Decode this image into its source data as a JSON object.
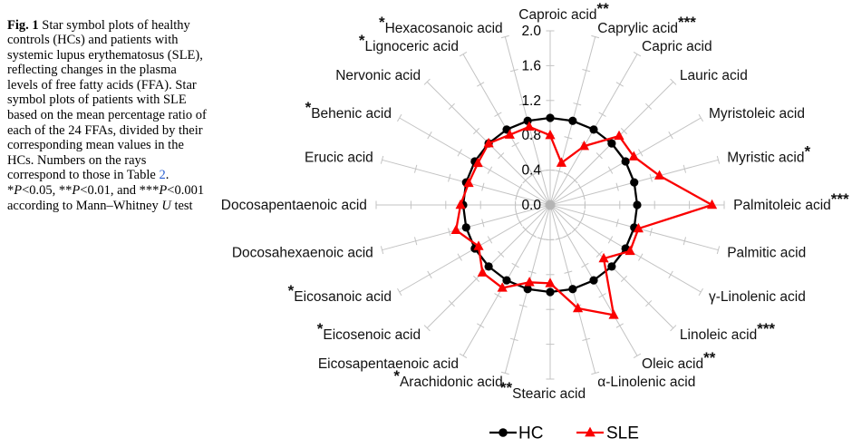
{
  "figure": {
    "caption_segments": [
      {
        "text": "Fig. 1",
        "bold": true
      },
      {
        "text": "  Star symbol plots of healthy controls (HCs) and patients with systemic lupus erythematosus (SLE), reflecting changes in the plasma levels of free fatty acids (FFA). Star symbol plots of patients with SLE based on the mean percentage ratio of each of the 24 FFAs, divided by their corresponding mean values in the HCs. Numbers on the rays correspond to those in Table "
      },
      {
        "text": "2",
        "link": true
      },
      {
        "text": ". *"
      },
      {
        "text": "P",
        "italic": true
      },
      {
        "text": "<0.05, **"
      },
      {
        "text": "P",
        "italic": true
      },
      {
        "text": "<0.01, and ***"
      },
      {
        "text": "P",
        "italic": true
      },
      {
        "text": "<0.001 according to Mann–Whitney "
      },
      {
        "text": "U",
        "italic": true
      },
      {
        "text": " test"
      }
    ],
    "link_color": "#2b5fd0",
    "text_color": "#000000"
  },
  "chart_data": {
    "type": "radar",
    "title": "",
    "axis_count": 24,
    "rmax": 2.0,
    "radial_ticks": [
      0.0,
      0.4,
      0.8,
      1.2,
      1.6,
      2.0
    ],
    "dashed_circle_radius": 0.4,
    "grid_color": "#c3c3c3",
    "label_color": "#111111",
    "categories": [
      {
        "label": "Caproic acid",
        "sig": "**"
      },
      {
        "label": "Caprylic acid",
        "sig": "***"
      },
      {
        "label": "Capric acid",
        "sig": ""
      },
      {
        "label": "Lauric acid",
        "sig": ""
      },
      {
        "label": "Myristoleic acid",
        "sig": ""
      },
      {
        "label": "Myristic acid",
        "sig": "*"
      },
      {
        "label": "Palmitoleic acid",
        "sig": "***"
      },
      {
        "label": "Palmitic acid",
        "sig": ""
      },
      {
        "label": "γ-Linolenic acid",
        "sig": ""
      },
      {
        "label": "Linoleic acid",
        "sig": "***"
      },
      {
        "label": "Oleic acid",
        "sig": "**"
      },
      {
        "label": "α-Linolenic acid",
        "sig": ""
      },
      {
        "label": "Stearic acid",
        "sig": "**"
      },
      {
        "label": "Arachidonic acid",
        "sig": "*"
      },
      {
        "label": "Eicosapentaenoic acid",
        "sig": ""
      },
      {
        "label": "Eicosenoic acid",
        "sig": "*"
      },
      {
        "label": "Eicosanoic acid",
        "sig": "*"
      },
      {
        "label": "Docosahexaenoic acid",
        "sig": ""
      },
      {
        "label": "Docosapentaenoic acid",
        "sig": ""
      },
      {
        "label": "Erucic acid",
        "sig": ""
      },
      {
        "label": "Behenic acid",
        "sig": "*"
      },
      {
        "label": "Nervonic acid",
        "sig": ""
      },
      {
        "label": "Lignoceric acid",
        "sig": "*"
      },
      {
        "label": "Hexacosanoic acid",
        "sig": "*"
      }
    ],
    "series": [
      {
        "name": "HC",
        "color": "#000000",
        "marker": "circle",
        "values": [
          1.0,
          1.0,
          1.0,
          1.0,
          1.0,
          1.0,
          1.0,
          1.0,
          1.0,
          1.0,
          1.0,
          1.0,
          1.0,
          1.0,
          1.0,
          1.0,
          1.0,
          1.0,
          1.0,
          1.0,
          1.0,
          1.0,
          1.0,
          1.0
        ]
      },
      {
        "name": "SLE",
        "color": "#fa0000",
        "marker": "triangle",
        "values": [
          0.8,
          0.5,
          0.78,
          1.12,
          1.11,
          1.3,
          1.86,
          1.05,
          1.06,
          0.87,
          1.46,
          1.23,
          0.9,
          0.92,
          1.1,
          1.1,
          0.95,
          1.12,
          1.03,
          0.97,
          0.96,
          1.0,
          0.93,
          0.93
        ]
      }
    ],
    "legend": [
      "HC",
      "SLE"
    ],
    "legend_position": "bottom-center"
  }
}
